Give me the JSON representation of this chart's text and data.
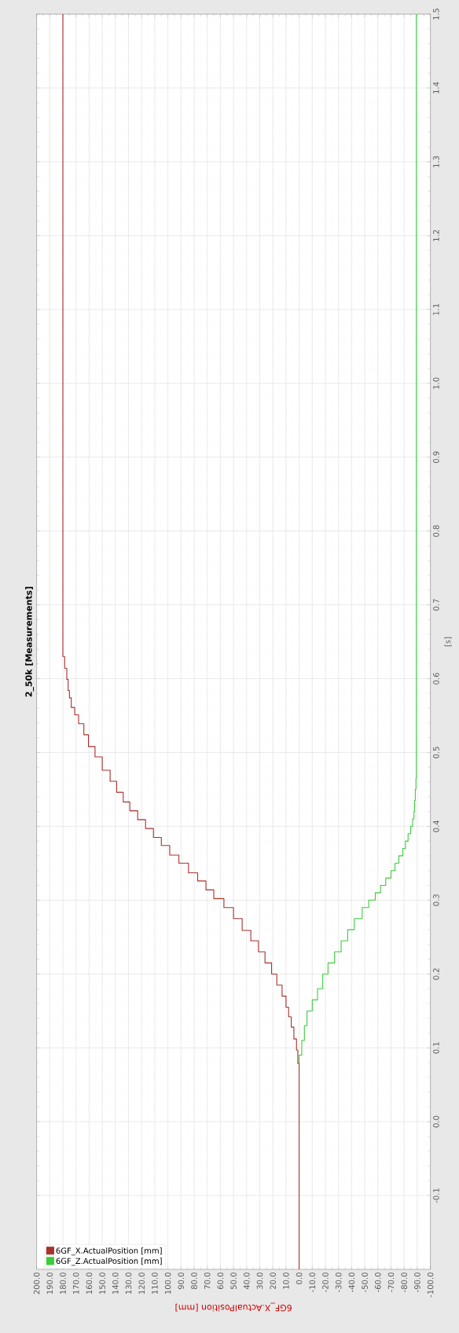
{
  "chart_data": {
    "type": "step",
    "title": "2_50k [Measurements]",
    "xlabel": "6GF_X.ActualPosition [mm]",
    "ylabel": "[s]",
    "xlim": [
      200,
      -100
    ],
    "ylim": [
      -0.2,
      1.5
    ],
    "yticks": [
      {
        "value": -0.1,
        "label": "-0.1"
      },
      {
        "value": 0,
        "label": "0.0"
      },
      {
        "value": 0.1,
        "label": "0.1"
      },
      {
        "value": 0.2,
        "label": "0.2"
      },
      {
        "value": 0.3,
        "label": "0.3"
      },
      {
        "value": 0.4,
        "label": "0.4"
      },
      {
        "value": 0.5,
        "label": "0.5"
      },
      {
        "value": 0.6,
        "label": "0.6"
      },
      {
        "value": 0.7,
        "label": "0.7"
      },
      {
        "value": 0.8,
        "label": "0.8"
      },
      {
        "value": 0.9,
        "label": "0.9"
      },
      {
        "value": 1,
        "label": "1.0"
      },
      {
        "value": 1.1,
        "label": "1.1"
      },
      {
        "value": 1.2,
        "label": "1.2"
      },
      {
        "value": 1.3,
        "label": "1.3"
      },
      {
        "value": 1.4,
        "label": "1.4"
      },
      {
        "value": 1.5,
        "label": "1.5"
      }
    ],
    "xticks": [
      {
        "value": -100,
        "label": "-100.0"
      },
      {
        "value": -90,
        "label": "-90.0"
      },
      {
        "value": -80,
        "label": "-80.0"
      },
      {
        "value": -70,
        "label": "-70.0"
      },
      {
        "value": -60,
        "label": "-60.0"
      },
      {
        "value": -50,
        "label": "-50.0"
      },
      {
        "value": -40,
        "label": "-40.0"
      },
      {
        "value": -30,
        "label": "-30.0"
      },
      {
        "value": -20,
        "label": "-20.0"
      },
      {
        "value": -10,
        "label": "-10.0"
      },
      {
        "value": 0,
        "label": "0.0"
      },
      {
        "value": 10,
        "label": "10.0"
      },
      {
        "value": 20,
        "label": "20.0"
      },
      {
        "value": 30,
        "label": "30.0"
      },
      {
        "value": 40,
        "label": "40.0"
      },
      {
        "value": 50,
        "label": "50.0"
      },
      {
        "value": 60,
        "label": "60.0"
      },
      {
        "value": 70,
        "label": "70.0"
      },
      {
        "value": 80,
        "label": "80.0"
      },
      {
        "value": 90,
        "label": "90.0"
      },
      {
        "value": 100,
        "label": "100.0"
      },
      {
        "value": 110,
        "label": "110.0"
      },
      {
        "value": 120,
        "label": "120.0"
      },
      {
        "value": 130,
        "label": "130.0"
      },
      {
        "value": 140,
        "label": "140.0"
      },
      {
        "value": 150,
        "label": "150.0"
      },
      {
        "value": 160,
        "label": "160.0"
      },
      {
        "value": 170,
        "label": "170.0"
      },
      {
        "value": 180,
        "label": "180.0"
      },
      {
        "value": 190,
        "label": "190.0"
      },
      {
        "value": 200,
        "label": "200.0"
      }
    ],
    "grid": true,
    "legend": "bottom left",
    "series": [
      {
        "name": "6GF_X.ActualPosition [mm]",
        "color": "#a8312c",
        "values": [
          -0.2,
          0.079,
          0.097,
          0.112,
          0.128,
          0.142,
          0.155,
          0.17,
          0.185,
          0.2,
          0.215,
          0.23,
          0.245,
          0.259,
          0.275,
          0.29,
          0.302,
          0.314,
          0.326,
          0.337,
          0.35,
          0.361,
          0.374,
          0.385,
          0.397,
          0.409,
          0.421,
          0.433,
          0.446,
          0.461,
          0.476,
          0.494,
          0.508,
          0.524,
          0.539,
          0.551,
          0.561,
          0.574,
          0.584,
          0.599,
          0.614,
          0.63,
          1.5
        ],
        "x": [
          0,
          1,
          2,
          4,
          6,
          8,
          10,
          13,
          17,
          21,
          26,
          31,
          36.8,
          43.4,
          50,
          57.3,
          65,
          71,
          77.3,
          84.3,
          91.6,
          98.6,
          105,
          111,
          117,
          123,
          129,
          134,
          139,
          144,
          150,
          155.5,
          160.5,
          164,
          168,
          171,
          173.6,
          175,
          176,
          177,
          178.6,
          180,
          180
        ]
      },
      {
        "name": "6GF_Z.ActualPosition [mm]",
        "color": "#3ccc3c",
        "values": [
          0.079,
          0.09,
          0.11,
          0.13,
          0.15,
          0.165,
          0.18,
          0.2,
          0.215,
          0.23,
          0.245,
          0.26,
          0.275,
          0.29,
          0.3,
          0.31,
          0.32,
          0.33,
          0.34,
          0.35,
          0.36,
          0.37,
          0.38,
          0.39,
          0.4,
          0.41,
          0.42,
          0.435,
          0.45,
          0.465,
          1.5
        ],
        "x": [
          0,
          -2,
          -4,
          -6,
          -10,
          -14,
          -18,
          -22,
          -27,
          -32,
          -37,
          -42,
          -48,
          -53,
          -58,
          -62,
          -66,
          -70,
          -73,
          -76,
          -79,
          -81,
          -83,
          -85,
          -86.5,
          -87.5,
          -88,
          -88.5,
          -89,
          -89.3,
          -89.3
        ]
      }
    ]
  }
}
